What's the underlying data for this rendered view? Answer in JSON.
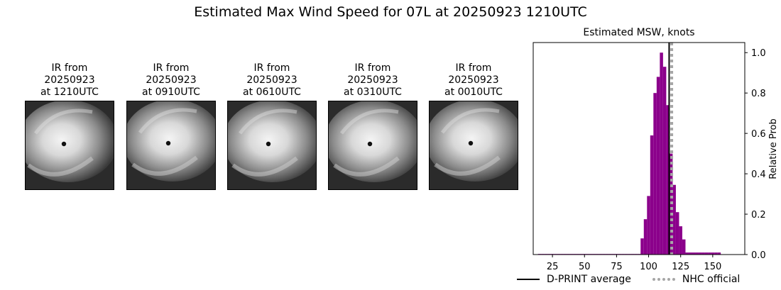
{
  "figure": {
    "suptitle": "Estimated Max Wind Speed for 07L at 20250923 1210UTC"
  },
  "ir_panels": [
    {
      "line1": "IR from",
      "line2": "20250923",
      "line3": "at 1210UTC"
    },
    {
      "line1": "IR from",
      "line2": "20250923",
      "line3": "at 0910UTC"
    },
    {
      "line1": "IR from",
      "line2": "20250923",
      "line3": "at 0610UTC"
    },
    {
      "line1": "IR from",
      "line2": "20250923",
      "line3": "at 0310UTC"
    },
    {
      "line1": "IR from",
      "line2": "20250923",
      "line3": "at 0010UTC"
    }
  ],
  "chart_data": {
    "type": "bar",
    "title": "Estimated MSW, knots",
    "xlabel": "",
    "ylabel": "Relative Prob",
    "xlim": [
      10,
      175
    ],
    "ylim": [
      0,
      1.05
    ],
    "xticks": [
      25,
      50,
      75,
      100,
      125,
      150
    ],
    "yticks": [
      0.0,
      0.2,
      0.4,
      0.6,
      0.8,
      1.0
    ],
    "bin_width": 2.5,
    "bins": [
      {
        "x": 15,
        "y": 0.003
      },
      {
        "x": 17.5,
        "y": 0.003
      },
      {
        "x": 20,
        "y": 0.003
      },
      {
        "x": 22.5,
        "y": 0.003
      },
      {
        "x": 25,
        "y": 0.003
      },
      {
        "x": 27.5,
        "y": 0.003
      },
      {
        "x": 30,
        "y": 0.003
      },
      {
        "x": 32.5,
        "y": 0.003
      },
      {
        "x": 35,
        "y": 0.003
      },
      {
        "x": 37.5,
        "y": 0.003
      },
      {
        "x": 40,
        "y": 0.003
      },
      {
        "x": 42.5,
        "y": 0.003
      },
      {
        "x": 45,
        "y": 0.003
      },
      {
        "x": 47.5,
        "y": 0.003
      },
      {
        "x": 50,
        "y": 0.003
      },
      {
        "x": 52.5,
        "y": 0.003
      },
      {
        "x": 55,
        "y": 0.003
      },
      {
        "x": 57.5,
        "y": 0.003
      },
      {
        "x": 60,
        "y": 0.003
      },
      {
        "x": 62.5,
        "y": 0.003
      },
      {
        "x": 65,
        "y": 0.003
      },
      {
        "x": 67.5,
        "y": 0.003
      },
      {
        "x": 70,
        "y": 0.003
      },
      {
        "x": 72.5,
        "y": 0.003
      },
      {
        "x": 75,
        "y": 0.003
      },
      {
        "x": 77.5,
        "y": 0.003
      },
      {
        "x": 80,
        "y": 0.003
      },
      {
        "x": 82.5,
        "y": 0.003
      },
      {
        "x": 85,
        "y": 0.003
      },
      {
        "x": 87.5,
        "y": 0.003
      },
      {
        "x": 90,
        "y": 0.003
      },
      {
        "x": 92.5,
        "y": 0.003
      },
      {
        "x": 95,
        "y": 0.08
      },
      {
        "x": 97.5,
        "y": 0.175
      },
      {
        "x": 100,
        "y": 0.29
      },
      {
        "x": 102.5,
        "y": 0.59
      },
      {
        "x": 105,
        "y": 0.8
      },
      {
        "x": 107.5,
        "y": 0.88
      },
      {
        "x": 110,
        "y": 1.0
      },
      {
        "x": 112.5,
        "y": 0.93
      },
      {
        "x": 115,
        "y": 0.74
      },
      {
        "x": 117.5,
        "y": 0.5
      },
      {
        "x": 120,
        "y": 0.345
      },
      {
        "x": 122.5,
        "y": 0.21
      },
      {
        "x": 125,
        "y": 0.14
      },
      {
        "x": 127.5,
        "y": 0.075
      },
      {
        "x": 130,
        "y": 0.01
      },
      {
        "x": 132.5,
        "y": 0.01
      },
      {
        "x": 135,
        "y": 0.01
      },
      {
        "x": 137.5,
        "y": 0.01
      },
      {
        "x": 140,
        "y": 0.01
      },
      {
        "x": 142.5,
        "y": 0.01
      },
      {
        "x": 145,
        "y": 0.01
      },
      {
        "x": 147.5,
        "y": 0.01
      },
      {
        "x": 150,
        "y": 0.01
      },
      {
        "x": 152.5,
        "y": 0.01
      },
      {
        "x": 155,
        "y": 0.01
      }
    ],
    "vlines": [
      {
        "name": "D-PRINT average",
        "x": 116,
        "style": "solid",
        "color": "#000000"
      },
      {
        "name": "NHC official",
        "x": 118,
        "style": "dotted",
        "color": "#a6a6a6"
      }
    ],
    "bar_color": "#8b008b",
    "legend_position": "bottom"
  },
  "legend": {
    "dprint_label": "D-PRINT average",
    "nhc_label": "NHC official"
  },
  "colors": {
    "bar": "#8b008b",
    "dprint_line": "#000000",
    "nhc_line": "#a6a6a6"
  }
}
